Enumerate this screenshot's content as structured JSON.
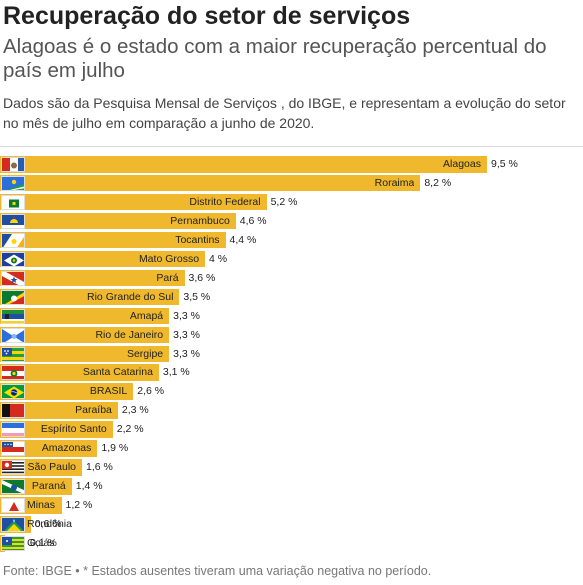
{
  "header": {
    "title": "Recuperação do setor de serviços",
    "subtitle": "Alagoas é o estado com a maior recuperação percentual do país em julho",
    "description": "Dados são da Pesquisa Mensal de Serviços , do IBGE, e representam a evolução do setor no mês de julho em comparação a junho de 2020."
  },
  "footer": {
    "source": "Fonte: IBGE • * Estados ausentes tiveram uma variação negativa no período."
  },
  "colors": {
    "bar": "#f0b92d"
  },
  "value_suffix": " %",
  "chart_data": {
    "type": "bar",
    "orientation": "horizontal",
    "title": "Recuperação do setor de serviços",
    "xlim": [
      0,
      10
    ],
    "grid": false,
    "legend": "none",
    "categories": [
      "Alagoas",
      "Roraima",
      "Distrito Federal",
      "Pernambuco",
      "Tocantins",
      "Mato Grosso",
      "Pará",
      "Rio Grande do Sul",
      "Amapá",
      "Rio de Janeiro",
      "Sergipe",
      "Santa Catarina",
      "BRASIL",
      "Paraíba",
      "Espírito Santo",
      "Amazonas",
      "São Paulo",
      "Paraná",
      "Minas Gerais",
      "Rondônia",
      "Goiás"
    ],
    "values": [
      9.5,
      8.2,
      5.2,
      4.6,
      4.4,
      4.0,
      3.6,
      3.5,
      3.3,
      3.3,
      3.3,
      3.1,
      2.6,
      2.3,
      2.2,
      1.9,
      1.6,
      1.4,
      1.2,
      0.6,
      0.1
    ],
    "value_labels": [
      "9,5",
      "8,2",
      "5,2",
      "4,6",
      "4,4",
      "4",
      "3,6",
      "3,5",
      "3,3",
      "3,3",
      "3,3",
      "3,1",
      "2,6",
      "2,3",
      "2,2",
      "1,9",
      "1,6",
      "1,4",
      "1,2",
      "0,6",
      "0,1"
    ],
    "flags": [
      "flag-alagoas-icon",
      "flag-roraima-icon",
      "flag-distrito-federal-icon",
      "flag-pernambuco-icon",
      "flag-tocantins-icon",
      "flag-mato-grosso-icon",
      "flag-para-icon",
      "flag-rio-grande-do-sul-icon",
      "flag-amapa-icon",
      "flag-rio-de-janeiro-icon",
      "flag-sergipe-icon",
      "flag-santa-catarina-icon",
      "flag-brasil-icon",
      "flag-paraiba-icon",
      "flag-espirito-santo-icon",
      "flag-amazonas-icon",
      "flag-sao-paulo-icon",
      "flag-parana-icon",
      "flag-minas-gerais-icon",
      "flag-rondonia-icon",
      "flag-goias-icon"
    ]
  }
}
